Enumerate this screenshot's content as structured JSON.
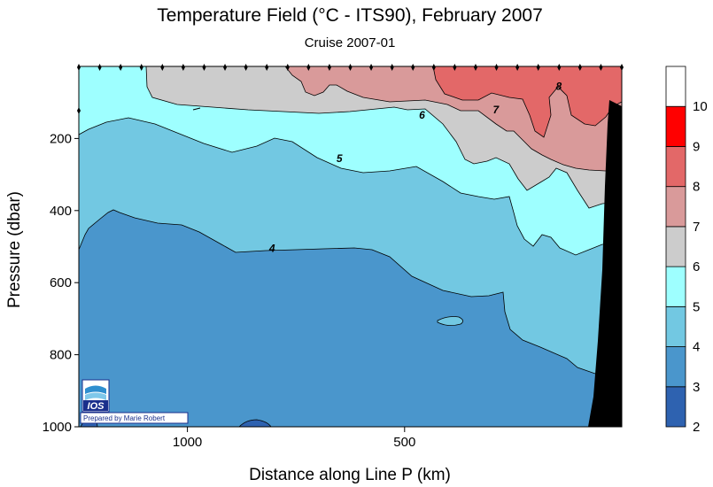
{
  "chart_data": {
    "type": "contour",
    "title": "Temperature Field (°C - ITS90),  February 2007",
    "subtitle": "Cruise 2007-01",
    "xlabel": "Distance along Line P  (km)",
    "ylabel": "Pressure  (dbar)",
    "x_axis": {
      "min": 1250,
      "max": 0,
      "direction": "decreasing",
      "ticks": [
        1000,
        500
      ],
      "tick_labels": [
        "1000",
        "500"
      ]
    },
    "y_axis": {
      "min": 0,
      "max": 1000,
      "direction": "inverted",
      "ticks": [
        200,
        400,
        600,
        800,
        1000
      ],
      "tick_labels": [
        "200",
        "400",
        "600",
        "800",
        "1000"
      ]
    },
    "colorbar": {
      "levels": [
        2,
        3,
        4,
        5,
        6,
        7,
        8,
        9,
        10
      ],
      "labels": [
        "2",
        "3",
        "4",
        "5",
        "6",
        "7",
        "8",
        "9",
        "10"
      ],
      "bands": [
        {
          "from": 2,
          "to": 3,
          "color": "#2e62b0"
        },
        {
          "from": 3,
          "to": 4,
          "color": "#4a96cc"
        },
        {
          "from": 4,
          "to": 5,
          "color": "#72c8e2"
        },
        {
          "from": 5,
          "to": 6,
          "color": "#9effff"
        },
        {
          "from": 6,
          "to": 7,
          "color": "#cccccc"
        },
        {
          "from": 7,
          "to": 8,
          "color": "#d99a9a"
        },
        {
          "from": 8,
          "to": 9,
          "color": "#e36868"
        },
        {
          "from": 9,
          "to": 10,
          "color": "#ff0000"
        },
        {
          "from": 10,
          "to": 11,
          "color": "#ffffff"
        }
      ]
    },
    "contour_labels": [
      {
        "value": 4,
        "text": "4",
        "x_km": 805,
        "pressure": 505
      },
      {
        "value": 5,
        "text": "5",
        "x_km": 650,
        "pressure": 255
      },
      {
        "value": 6,
        "text": "6",
        "x_km": 460,
        "pressure": 135
      },
      {
        "value": 7,
        "text": "7",
        "x_km": 290,
        "pressure": 120
      },
      {
        "value": 8,
        "text": "8",
        "x_km": 145,
        "pressure": 55
      }
    ],
    "station_count": 27,
    "seafloor": {
      "color": "#000000",
      "note": "continental slope near 0 km"
    }
  },
  "logo": {
    "text": "IOS",
    "credit": "Prepared by Marie Robert"
  }
}
